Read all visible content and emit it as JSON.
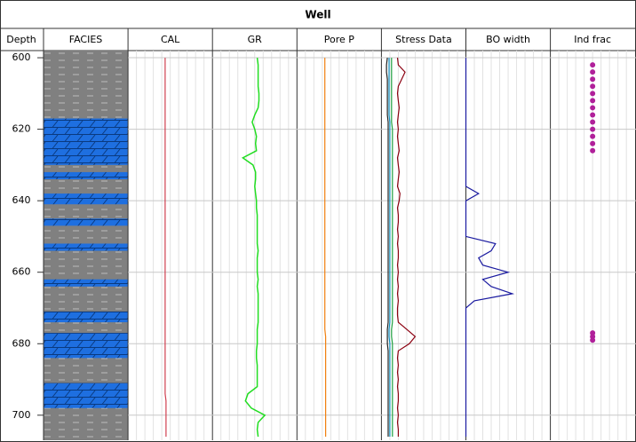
{
  "chart_data": {
    "type": "well-log",
    "title": "Well",
    "depth_label": "Depth",
    "tracks": [
      "FACIES",
      "CAL",
      "GR",
      "Pore P",
      "Stress Data",
      "BO width",
      "Ind frac"
    ],
    "ylim": [
      598,
      707
    ],
    "yticks": [
      600,
      620,
      640,
      660,
      680,
      700
    ],
    "grid": true,
    "xlim": [
      0,
      100
    ],
    "facies": {
      "background": "#808080",
      "color": "#1e6fe0",
      "intervals": [
        [
          617,
          630
        ],
        [
          632,
          634
        ],
        [
          638,
          641
        ],
        [
          645,
          647
        ],
        [
          652,
          654
        ],
        [
          662,
          664
        ],
        [
          671,
          674
        ],
        [
          677,
          684
        ],
        [
          691,
          698
        ]
      ]
    },
    "depths": [
      600,
      602,
      604,
      606,
      608,
      610,
      612,
      614,
      616,
      618,
      620,
      622,
      624,
      626,
      628,
      630,
      632,
      634,
      636,
      638,
      640,
      642,
      644,
      646,
      648,
      650,
      652,
      654,
      656,
      658,
      660,
      662,
      664,
      666,
      668,
      670,
      672,
      674,
      676,
      678,
      680,
      682,
      684,
      686,
      688,
      690,
      692,
      694,
      696,
      698,
      700,
      702,
      704,
      706
    ],
    "curves": [
      {
        "track": 1,
        "color": "#d04050",
        "values": [
          44,
          44,
          44,
          44,
          44,
          44,
          44,
          44,
          44,
          44,
          44,
          44,
          44,
          44,
          44,
          44,
          44,
          44,
          44,
          44,
          44,
          44,
          44,
          44,
          44,
          44,
          44,
          44,
          44,
          44,
          44,
          44,
          44,
          44,
          44,
          44,
          44,
          44,
          44,
          44,
          44,
          44,
          44,
          44,
          44,
          44,
          44,
          44,
          45,
          45,
          45,
          45,
          45,
          45
        ]
      },
      {
        "track": 2,
        "color": "#22dd22",
        "values": [
          53,
          54,
          54,
          54,
          54,
          55,
          55,
          54,
          50,
          47,
          50,
          52,
          51,
          52,
          36,
          48,
          51,
          51,
          50,
          51,
          52,
          52,
          53,
          53,
          53,
          53,
          53,
          54,
          53,
          53,
          53,
          54,
          53,
          54,
          54,
          54,
          54,
          54,
          53,
          53,
          53,
          52,
          52,
          53,
          53,
          53,
          53,
          42,
          39,
          46,
          62,
          54,
          53,
          54
        ]
      },
      {
        "track": 3,
        "color": "#f08010",
        "values": [
          33,
          33,
          33,
          33,
          33,
          33,
          33,
          33,
          33,
          33,
          33,
          33,
          33,
          33,
          33,
          33,
          33,
          33,
          33,
          33,
          33,
          33,
          33,
          33,
          33,
          33,
          33,
          33,
          33,
          33,
          33,
          33,
          33,
          33,
          33,
          33,
          33,
          33,
          33,
          34,
          34,
          34,
          34,
          34,
          34,
          34,
          34,
          34,
          34,
          34,
          34,
          34,
          34,
          34
        ]
      },
      {
        "track": 4,
        "color": "#202020",
        "values": [
          7,
          6,
          6,
          7,
          7,
          7,
          7,
          7,
          7,
          8,
          8,
          8,
          8,
          8,
          8,
          8,
          8,
          8,
          8,
          8,
          8,
          8,
          8,
          8,
          8,
          8,
          8,
          8,
          8,
          8,
          8,
          8,
          8,
          8,
          8,
          8,
          8,
          8,
          7,
          7,
          7,
          8,
          8,
          8,
          8,
          8,
          8,
          8,
          8,
          8,
          8,
          8,
          8,
          8
        ]
      },
      {
        "track": 4,
        "color": "#1090c0",
        "values": [
          9,
          9,
          9,
          9,
          9,
          9,
          9,
          9,
          9,
          10,
          10,
          10,
          10,
          10,
          10,
          10,
          10,
          10,
          10,
          10,
          10,
          10,
          10,
          10,
          10,
          10,
          10,
          10,
          10,
          10,
          10,
          10,
          10,
          10,
          10,
          10,
          10,
          10,
          9,
          9,
          10,
          10,
          10,
          10,
          10,
          10,
          10,
          10,
          10,
          10,
          10,
          10,
          10,
          10
        ]
      },
      {
        "track": 4,
        "color": "#20a040",
        "values": [
          12,
          12,
          12,
          12,
          12,
          12,
          12,
          12,
          12,
          12,
          13,
          13,
          13,
          13,
          13,
          13,
          13,
          13,
          13,
          13,
          13,
          13,
          13,
          13,
          13,
          13,
          13,
          13,
          13,
          13,
          13,
          13,
          13,
          13,
          13,
          13,
          13,
          13,
          12,
          12,
          13,
          13,
          13,
          13,
          13,
          13,
          13,
          13,
          13,
          13,
          13,
          13,
          13,
          13
        ]
      },
      {
        "track": 4,
        "color": "#8b0010",
        "values": [
          19,
          20,
          28,
          24,
          20,
          19,
          20,
          21,
          20,
          19,
          20,
          19,
          20,
          21,
          19,
          20,
          21,
          20,
          19,
          22,
          21,
          19,
          20,
          20,
          19,
          20,
          19,
          20,
          20,
          19,
          20,
          19,
          20,
          19,
          20,
          19,
          19,
          20,
          30,
          40,
          33,
          20,
          19,
          20,
          19,
          20,
          19,
          20,
          20,
          19,
          20,
          19,
          20,
          20
        ]
      },
      {
        "track": 5,
        "color": "#1a1aa0",
        "values": [
          0,
          0,
          0,
          0,
          0,
          0,
          0,
          0,
          0,
          0,
          0,
          0,
          0,
          0,
          0,
          0,
          0,
          0,
          0,
          15,
          0,
          0,
          0,
          0,
          0,
          0,
          35,
          30,
          15,
          20,
          50,
          20,
          30,
          55,
          10,
          0,
          0,
          0,
          0,
          0,
          0,
          0,
          0,
          0,
          0,
          0,
          0,
          0,
          0,
          0,
          0,
          0,
          0,
          0
        ]
      }
    ],
    "points": {
      "track": 6,
      "color": "#b0209a",
      "value": 50,
      "depths": [
        602,
        604,
        606,
        608,
        610,
        612,
        614,
        616,
        618,
        620,
        622,
        624,
        626,
        677,
        678,
        679
      ]
    }
  }
}
